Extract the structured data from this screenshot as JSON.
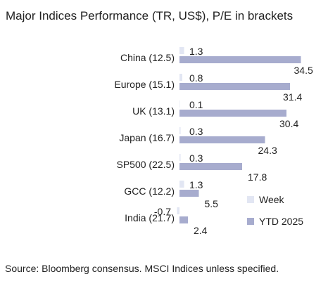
{
  "chart_data": {
    "type": "bar",
    "orientation": "horizontal",
    "title": "Major Indices Performance (TR, US$), P/E in brackets",
    "categories": [
      "China (12.5)",
      "Europe (15.1)",
      "UK (13.1)",
      "Japan (16.7)",
      "SP500 (22.5)",
      "GCC (12.2)",
      "India (21.7)"
    ],
    "series": [
      {
        "name": "Week",
        "values": [
          1.3,
          0.8,
          0.1,
          0.3,
          0.3,
          1.3,
          -0.7
        ],
        "labels": [
          "1.3",
          "0.8",
          "0.1",
          "0.3",
          "0.3",
          "1.3",
          "-0.7"
        ],
        "color": "#e2e6f3"
      },
      {
        "name": "YTD 2025",
        "values": [
          34.5,
          31.4,
          30.4,
          24.3,
          17.8,
          5.5,
          2.4
        ],
        "labels": [
          "34.5",
          "31.4",
          "30.4",
          "24.3",
          "17.8",
          "5.5",
          "2.4"
        ],
        "color": "#a7acce"
      }
    ],
    "legend_position": "bottom-right",
    "grid": false,
    "xlim": [
      -0.7,
      34.5
    ]
  },
  "footer": {
    "source": "Source: Bloomberg consensus. MSCI Indices unless specified."
  }
}
